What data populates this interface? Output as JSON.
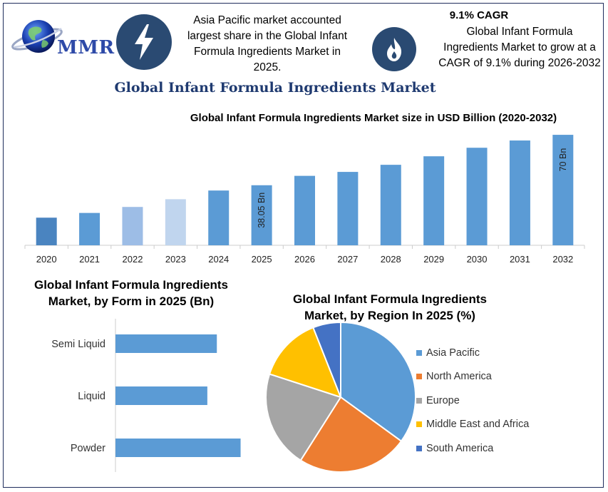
{
  "logo": {
    "text": "MMR"
  },
  "header": {
    "icon1": "lightning-bolt-icon",
    "note1": [
      "Asia Pacific market accounted",
      "largest share in the Global Infant",
      "Formula Ingredients Market in",
      "2025."
    ],
    "icon2": "flame-icon",
    "cagr_heading": "9.1% CAGR",
    "cagr_note": [
      "Global Infant Formula",
      "Ingredients Market to grow at a",
      "CAGR of 9.1% during 2026-2032"
    ]
  },
  "title": "Global Infant Formula Ingredients Market",
  "colors": {
    "title": "#1f3a70",
    "bar_blue": "#5b9bd5",
    "icon_bg": "#2a4a72"
  },
  "chart_data": [
    {
      "type": "bar",
      "title": "Global Infant Formula Ingredients Market size in USD Billion (2020-2032)",
      "categories": [
        "2020",
        "2021",
        "2022",
        "2023",
        "2024",
        "2025",
        "2026",
        "2027",
        "2028",
        "2029",
        "2030",
        "2031",
        "2032"
      ],
      "values": [
        17.5,
        20.5,
        24.3,
        29.2,
        34.7,
        38.05,
        44.0,
        46.5,
        51.0,
        56.4,
        61.8,
        66.4,
        70
      ],
      "bar_colors": [
        "#4a84c0",
        "#5b9bd5",
        "#9dbde6",
        "#c0d5ee",
        "#5b9bd5",
        "#5b9bd5",
        "#5b9bd5",
        "#5b9bd5",
        "#5b9bd5",
        "#5b9bd5",
        "#5b9bd5",
        "#5b9bd5",
        "#5b9bd5"
      ],
      "data_labels": {
        "2025": "38.05 Bn",
        "2032": "70 Bn"
      },
      "ylim": [
        0,
        75
      ],
      "grid": false
    },
    {
      "type": "bar",
      "orientation": "horizontal",
      "title": "Global Infant Formula Ingredients Market, by Form in 2025 (Bn)",
      "title_lines": [
        "Global Infant Formula Ingredients",
        "Market, by Form in 2025 (Bn)"
      ],
      "categories": [
        "Semi Liquid",
        "Liquid",
        "Powder"
      ],
      "values": [
        12.8,
        11.6,
        15.8
      ],
      "xlim": [
        0,
        18
      ],
      "color": "#5b9bd5"
    },
    {
      "type": "pie",
      "title": "Global Infant Formula Ingredients Market, by Region In 2025 (%)",
      "title_lines": [
        "Global Infant Formula Ingredients",
        "Market, by Region In 2025 (%)"
      ],
      "labels": [
        "Asia Pacific",
        "North America",
        "Europe",
        "Middle East and Africa",
        "South America"
      ],
      "values": [
        35,
        24,
        21,
        14,
        6
      ],
      "colors": [
        "#5b9bd5",
        "#ed7d31",
        "#a5a5a5",
        "#ffc000",
        "#4472c4"
      ],
      "legend_position": "right"
    }
  ]
}
